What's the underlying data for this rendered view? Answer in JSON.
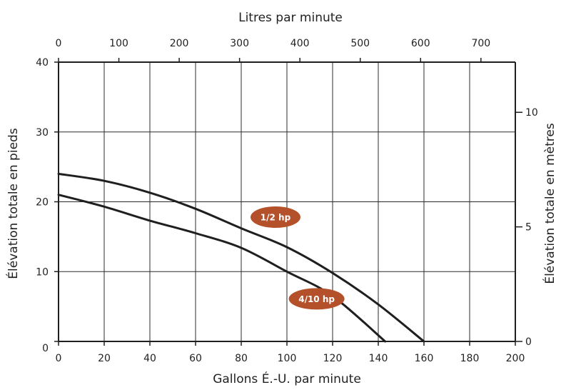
{
  "chart_data": {
    "type": "line",
    "title": "",
    "xlabel": "Gallons É.-U. par minute",
    "ylabel": "Élévation totale en pieds",
    "x2label": "Litres par minute",
    "y2label": "Élévation totale en mètres",
    "xlim": [
      0,
      200
    ],
    "ylim": [
      0,
      40
    ],
    "x2lim": [
      0,
      757
    ],
    "y2lim": [
      0,
      12.19
    ],
    "xticks": [
      0,
      20,
      40,
      60,
      80,
      100,
      120,
      140,
      160,
      180,
      200
    ],
    "yticks": [
      0,
      10,
      20,
      30,
      40
    ],
    "x2ticks": [
      0,
      100,
      200,
      300,
      400,
      500,
      600,
      700
    ],
    "y2ticks": [
      0,
      5,
      10
    ],
    "grid": true,
    "legend": "none",
    "series": [
      {
        "name": "1/2 hp",
        "x": [
          0,
          20,
          40,
          60,
          80,
          100,
          120,
          140,
          160
        ],
        "y": [
          24,
          23,
          21.3,
          19,
          16.2,
          13.5,
          9.8,
          5.3,
          0
        ]
      },
      {
        "name": "4/10 hp",
        "x": [
          0,
          20,
          40,
          60,
          80,
          100,
          120,
          143
        ],
        "y": [
          21,
          19.3,
          17.3,
          15.5,
          13.4,
          10,
          6.5,
          0
        ]
      }
    ]
  },
  "colors": {
    "line": "#1f1f1f",
    "grid": "#2a2a2a",
    "badge": "#b4512a",
    "badge_text": "#ffffff"
  }
}
